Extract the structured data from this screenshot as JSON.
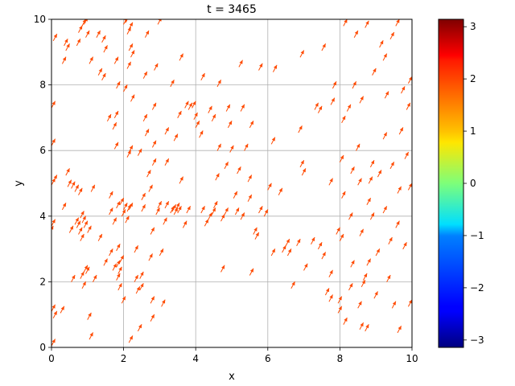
{
  "chart_data": {
    "type": "quiver",
    "title": "t = 3465",
    "xlabel": "x",
    "ylabel": "y",
    "xlim": [
      0,
      10
    ],
    "ylim": [
      0,
      10
    ],
    "x_ticks": [
      "0",
      "2",
      "4",
      "6",
      "8",
      "10"
    ],
    "y_ticks": [
      "0",
      "2",
      "4",
      "6",
      "8",
      "10"
    ],
    "grid": true,
    "arrow_color": "#ff4a00",
    "arrow_angle_deg": 62,
    "arrow_length": 0.22,
    "colorbar": {
      "range": [
        -3.14159,
        3.14159
      ],
      "ticks": [
        "−3",
        "−2",
        "−1",
        "0",
        "1",
        "2",
        "3"
      ],
      "colormap": "jet"
    },
    "points": [
      [
        0.05,
        0.15
      ],
      [
        0.1,
        1.0
      ],
      [
        0.05,
        1.2
      ],
      [
        0.0,
        3.6
      ],
      [
        0.05,
        3.8
      ],
      [
        0.05,
        5.05
      ],
      [
        0.1,
        5.15
      ],
      [
        0.05,
        6.25
      ],
      [
        0.05,
        7.4
      ],
      [
        0.1,
        9.45
      ],
      [
        0.35,
        4.3
      ],
      [
        0.35,
        8.75
      ],
      [
        0.4,
        9.3
      ],
      [
        0.45,
        9.15
      ],
      [
        0.45,
        5.35
      ],
      [
        0.5,
        5.0
      ],
      [
        0.6,
        4.95
      ],
      [
        0.7,
        4.85
      ],
      [
        0.8,
        4.75
      ],
      [
        0.6,
        2.1
      ],
      [
        0.7,
        3.85
      ],
      [
        0.75,
        3.75
      ],
      [
        0.8,
        3.55
      ],
      [
        0.85,
        3.35
      ],
      [
        0.75,
        9.3
      ],
      [
        0.8,
        9.7
      ],
      [
        0.9,
        9.9
      ],
      [
        0.95,
        9.95
      ],
      [
        0.85,
        4.05
      ],
      [
        0.9,
        3.9
      ],
      [
        0.95,
        3.75
      ],
      [
        1.0,
        2.35
      ],
      [
        0.85,
        2.2
      ],
      [
        0.9,
        1.9
      ],
      [
        0.95,
        2.4
      ],
      [
        1.05,
        3.6
      ],
      [
        1.05,
        0.95
      ],
      [
        1.1,
        0.35
      ],
      [
        1.0,
        9.55
      ],
      [
        1.1,
        8.75
      ],
      [
        1.15,
        4.85
      ],
      [
        1.2,
        2.1
      ],
      [
        1.35,
        3.35
      ],
      [
        1.3,
        9.55
      ],
      [
        1.35,
        8.4
      ],
      [
        1.45,
        8.25
      ],
      [
        1.45,
        9.4
      ],
      [
        1.5,
        9.1
      ],
      [
        1.6,
        7.0
      ],
      [
        1.65,
        4.65
      ],
      [
        1.65,
        4.15
      ],
      [
        1.75,
        3.85
      ],
      [
        1.75,
        6.75
      ],
      [
        1.8,
        7.1
      ],
      [
        1.85,
        8.0
      ],
      [
        1.8,
        6.15
      ],
      [
        1.8,
        8.75
      ],
      [
        1.85,
        2.55
      ],
      [
        1.9,
        2.35
      ],
      [
        1.95,
        2.7
      ],
      [
        1.85,
        2.15
      ],
      [
        1.9,
        1.85
      ],
      [
        2.0,
        1.45
      ],
      [
        1.75,
        2.45
      ],
      [
        1.85,
        3.05
      ],
      [
        1.85,
        4.35
      ],
      [
        1.95,
        4.45
      ],
      [
        2.0,
        4.1
      ],
      [
        2.05,
        4.3
      ],
      [
        2.1,
        3.9
      ],
      [
        2.15,
        4.25
      ],
      [
        2.2,
        4.3
      ],
      [
        2.15,
        5.9
      ],
      [
        2.2,
        6.05
      ],
      [
        2.05,
        7.9
      ],
      [
        2.15,
        8.6
      ],
      [
        2.2,
        9.15
      ],
      [
        2.15,
        9.65
      ],
      [
        2.2,
        9.8
      ],
      [
        2.05,
        9.95
      ],
      [
        2.1,
        10.0
      ],
      [
        2.25,
        8.95
      ],
      [
        2.25,
        7.6
      ],
      [
        2.35,
        3.0
      ],
      [
        2.35,
        2.1
      ],
      [
        2.45,
        0.6
      ],
      [
        2.2,
        0.25
      ],
      [
        2.4,
        1.75
      ],
      [
        2.5,
        1.85
      ],
      [
        2.5,
        2.2
      ],
      [
        2.55,
        4.25
      ],
      [
        2.55,
        4.6
      ],
      [
        2.6,
        7.0
      ],
      [
        2.6,
        8.3
      ],
      [
        2.65,
        6.55
      ],
      [
        2.7,
        5.3
      ],
      [
        2.75,
        4.85
      ],
      [
        2.75,
        2.75
      ],
      [
        2.8,
        1.45
      ],
      [
        2.8,
        0.9
      ],
      [
        2.8,
        3.55
      ],
      [
        2.85,
        5.65
      ],
      [
        2.85,
        6.2
      ],
      [
        2.85,
        7.35
      ],
      [
        2.9,
        8.55
      ],
      [
        2.95,
        4.15
      ],
      [
        3.0,
        4.35
      ],
      [
        3.05,
        2.9
      ],
      [
        3.1,
        1.35
      ],
      [
        3.15,
        3.85
      ],
      [
        3.2,
        4.35
      ],
      [
        3.2,
        5.65
      ],
      [
        3.2,
        6.6
      ],
      [
        3.35,
        4.2
      ],
      [
        3.4,
        4.25
      ],
      [
        3.45,
        4.15
      ],
      [
        3.5,
        4.3
      ],
      [
        3.55,
        4.2
      ],
      [
        3.45,
        6.4
      ],
      [
        3.55,
        7.1
      ],
      [
        3.6,
        5.1
      ],
      [
        3.7,
        3.75
      ],
      [
        3.8,
        4.2
      ],
      [
        3.75,
        7.4
      ],
      [
        3.85,
        7.35
      ],
      [
        3.95,
        7.4
      ],
      [
        4.0,
        7.05
      ],
      [
        4.05,
        6.8
      ],
      [
        4.15,
        6.5
      ],
      [
        4.2,
        4.2
      ],
      [
        4.3,
        3.8
      ],
      [
        4.4,
        4.0
      ],
      [
        4.4,
        7.25
      ],
      [
        4.5,
        7.0
      ],
      [
        4.5,
        4.15
      ],
      [
        4.55,
        4.35
      ],
      [
        4.6,
        5.2
      ],
      [
        4.65,
        6.1
      ],
      [
        4.75,
        2.4
      ],
      [
        4.75,
        3.95
      ],
      [
        4.85,
        4.15
      ],
      [
        4.85,
        5.55
      ],
      [
        4.9,
        7.3
      ],
      [
        4.95,
        6.8
      ],
      [
        5.0,
        6.05
      ],
      [
        5.1,
        4.65
      ],
      [
        5.15,
        4.15
      ],
      [
        5.2,
        5.4
      ],
      [
        5.3,
        4.0
      ],
      [
        5.3,
        7.3
      ],
      [
        5.4,
        6.1
      ],
      [
        5.5,
        4.55
      ],
      [
        5.55,
        2.3
      ],
      [
        5.5,
        5.15
      ],
      [
        5.55,
        6.8
      ],
      [
        5.65,
        3.55
      ],
      [
        5.7,
        3.4
      ],
      [
        5.8,
        4.2
      ],
      [
        5.8,
        8.55
      ],
      [
        5.95,
        4.1
      ],
      [
        6.05,
        4.9
      ],
      [
        6.15,
        2.9
      ],
      [
        6.2,
        8.5
      ],
      [
        6.35,
        4.75
      ],
      [
        6.45,
        3.0
      ],
      [
        6.55,
        3.2
      ],
      [
        6.6,
        2.9
      ],
      [
        6.7,
        1.9
      ],
      [
        6.85,
        3.2
      ],
      [
        6.9,
        6.65
      ],
      [
        6.95,
        5.6
      ],
      [
        7.0,
        5.35
      ],
      [
        7.05,
        2.45
      ],
      [
        7.25,
        3.25
      ],
      [
        7.35,
        7.35
      ],
      [
        7.45,
        7.25
      ],
      [
        7.45,
        3.1
      ],
      [
        7.55,
        2.8
      ],
      [
        7.65,
        1.7
      ],
      [
        7.75,
        1.5
      ],
      [
        7.75,
        2.25
      ],
      [
        7.75,
        5.05
      ],
      [
        7.8,
        7.5
      ],
      [
        7.85,
        8.0
      ],
      [
        7.95,
        3.55
      ],
      [
        8.0,
        1.15
      ],
      [
        8.0,
        1.45
      ],
      [
        8.05,
        3.35
      ],
      [
        8.05,
        5.75
      ],
      [
        8.1,
        6.95
      ],
      [
        8.1,
        4.65
      ],
      [
        8.15,
        0.8
      ],
      [
        8.25,
        7.3
      ],
      [
        8.3,
        1.85
      ],
      [
        8.3,
        4.0
      ],
      [
        8.35,
        2.55
      ],
      [
        8.35,
        5.4
      ],
      [
        8.4,
        8.0
      ],
      [
        8.45,
        9.55
      ],
      [
        8.5,
        6.1
      ],
      [
        8.55,
        5.05
      ],
      [
        8.6,
        0.65
      ],
      [
        8.55,
        1.3
      ],
      [
        8.6,
        3.5
      ],
      [
        8.6,
        7.55
      ],
      [
        8.65,
        1.95
      ],
      [
        8.7,
        2.15
      ],
      [
        8.75,
        0.6
      ],
      [
        8.8,
        2.6
      ],
      [
        8.8,
        4.45
      ],
      [
        8.85,
        5.1
      ],
      [
        8.9,
        4.0
      ],
      [
        8.9,
        5.6
      ],
      [
        8.95,
        8.4
      ],
      [
        9.0,
        1.6
      ],
      [
        9.05,
        2.9
      ],
      [
        9.1,
        5.3
      ],
      [
        9.15,
        9.25
      ],
      [
        9.25,
        4.2
      ],
      [
        9.25,
        6.45
      ],
      [
        9.3,
        7.7
      ],
      [
        9.35,
        2.1
      ],
      [
        9.4,
        3.25
      ],
      [
        9.45,
        5.55
      ],
      [
        9.45,
        9.5
      ],
      [
        9.5,
        1.3
      ],
      [
        9.6,
        3.75
      ],
      [
        9.65,
        0.55
      ],
      [
        9.65,
        4.8
      ],
      [
        9.7,
        6.6
      ],
      [
        9.75,
        7.85
      ],
      [
        9.8,
        3.1
      ],
      [
        9.85,
        5.85
      ],
      [
        9.9,
        7.35
      ],
      [
        9.95,
        8.15
      ],
      [
        9.95,
        4.9
      ],
      [
        9.95,
        1.35
      ],
      [
        0.3,
        1.15
      ],
      [
        0.55,
        3.6
      ],
      [
        1.5,
        2.6
      ],
      [
        1.65,
        2.9
      ],
      [
        2.45,
        5.95
      ],
      [
        2.65,
        9.55
      ],
      [
        3.0,
        9.95
      ],
      [
        3.35,
        8.05
      ],
      [
        3.6,
        8.85
      ],
      [
        4.2,
        8.25
      ],
      [
        4.65,
        8.05
      ],
      [
        5.25,
        8.65
      ],
      [
        6.15,
        6.3
      ],
      [
        6.95,
        8.95
      ],
      [
        7.55,
        9.15
      ],
      [
        8.15,
        9.9
      ],
      [
        8.75,
        9.85
      ],
      [
        9.25,
        8.85
      ],
      [
        9.6,
        9.9
      ]
    ]
  }
}
